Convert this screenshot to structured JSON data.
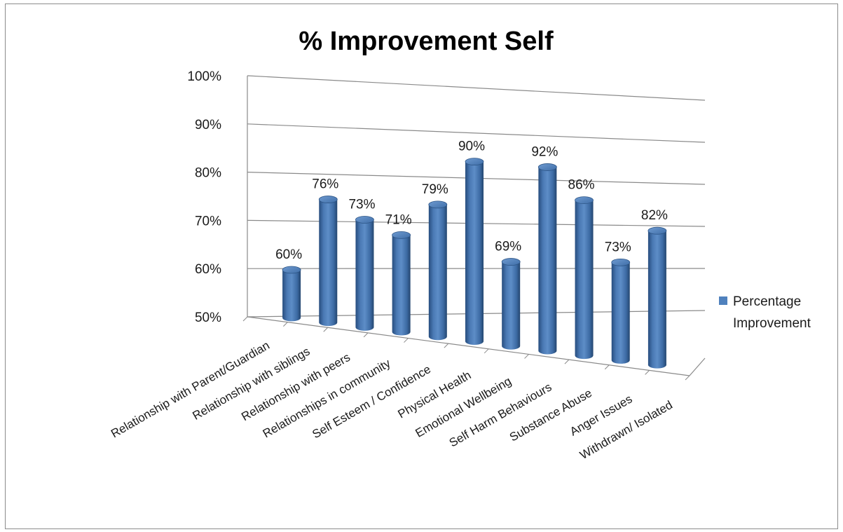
{
  "chart_data": {
    "type": "bar",
    "style": "3d-cylinder",
    "title": "% Improvement Self",
    "xlabel": "",
    "ylabel": "",
    "ylim": [
      50,
      100
    ],
    "yticks": [
      "50%",
      "60%",
      "70%",
      "80%",
      "90%",
      "100%"
    ],
    "categories": [
      "Relationship with Parent/Guardian",
      "Relationship with siblings",
      "Relationship with peers",
      "Relationships in community",
      "Self Esteem / Confidence",
      "Physical Health",
      "Emotional Wellbeing",
      "Self Harm Behaviours",
      "Substance Abuse",
      "Anger Issues",
      "Withdrawn/ Isolated"
    ],
    "series": [
      {
        "name": "Percentage Improvement",
        "color": "#4f81bd",
        "values": [
          60,
          76,
          73,
          71,
          79,
          90,
          69,
          92,
          86,
          73,
          82
        ],
        "labels": [
          "60%",
          "76%",
          "73%",
          "71%",
          "79%",
          "90%",
          "69%",
          "92%",
          "86%",
          "73%",
          "82%"
        ]
      }
    ],
    "grid": true,
    "legend": "right"
  }
}
